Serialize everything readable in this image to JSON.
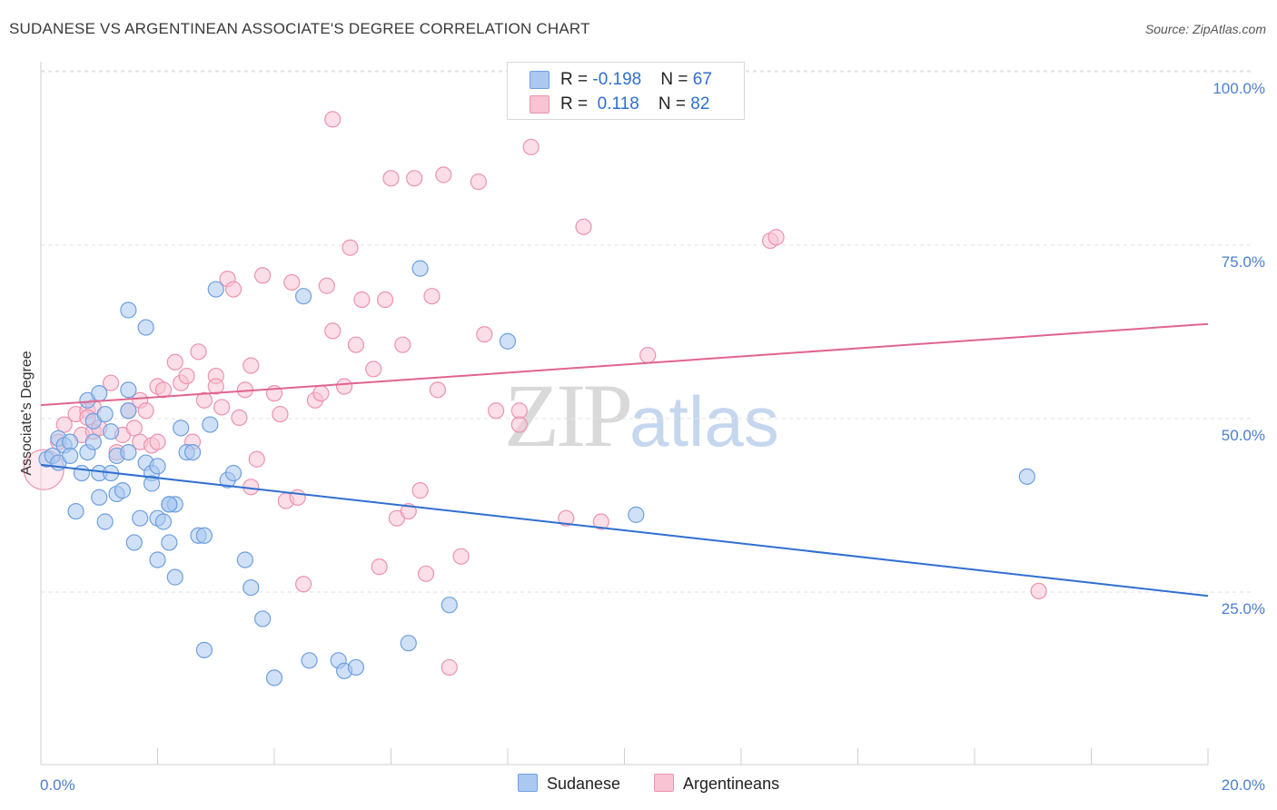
{
  "title": "SUDANESE VS ARGENTINEAN ASSOCIATE'S DEGREE CORRELATION CHART",
  "source": "Source: ZipAtlas.com",
  "watermark": {
    "zip": "ZIP",
    "atlas": "atlas"
  },
  "colors": {
    "sudanese_fill": "#aac8f0",
    "sudanese_stroke": "#6e9fdf",
    "sudanese_line": "#2f6fd0",
    "argentinean_fill": "#f8c3d3",
    "argentinean_stroke": "#ec93af",
    "argentinean_line": "#e0648e",
    "axis_text": "#4a7fd0",
    "grid": "#e2e2e2"
  },
  "legend": {
    "rows": [
      {
        "r_label": "R = ",
        "r_value": "-0.198",
        "n_label": "N = ",
        "n_value": "67"
      },
      {
        "r_label": "R = ",
        "r_value": " 0.118",
        "n_label": "N = ",
        "n_value": "82"
      }
    ]
  },
  "bottom_legend": {
    "series1": "Sudanese",
    "series2": "Argentineans"
  },
  "chart_data": {
    "type": "scatter",
    "title": "SUDANESE VS ARGENTINEAN ASSOCIATE'S DEGREE CORRELATION CHART",
    "xlabel": "",
    "ylabel": "Associate's Degree",
    "xlim": [
      0,
      20
    ],
    "ylim": [
      0,
      105
    ],
    "x_ticks": [
      {
        "v": 0,
        "label": "0.0%"
      },
      {
        "v": 20,
        "label": "20.0%"
      }
    ],
    "x_minor_ticks": [
      0,
      2,
      4,
      6,
      8,
      10,
      12,
      14,
      16,
      18,
      20
    ],
    "y_ticks": [
      {
        "v": 25,
        "label": "25.0%"
      },
      {
        "v": 50,
        "label": "50.0%"
      },
      {
        "v": 75,
        "label": "75.0%"
      },
      {
        "v": 100,
        "label": "100.0%"
      }
    ],
    "grid": true,
    "legend_position": "top-center",
    "series": [
      {
        "name": "Sudanese",
        "R": -0.198,
        "N": 67,
        "trend": {
          "x": [
            0,
            20
          ],
          "y": [
            45.7,
            26.8
          ]
        },
        "points": [
          [
            0.1,
            46.5
          ],
          [
            0.2,
            47
          ],
          [
            0.3,
            49.5
          ],
          [
            0.4,
            48.5
          ],
          [
            0.5,
            49
          ],
          [
            0.7,
            44.5
          ],
          [
            0.8,
            47.5
          ],
          [
            0.6,
            39
          ],
          [
            1.0,
            44.5
          ],
          [
            0.8,
            55
          ],
          [
            0.9,
            52
          ],
          [
            1.0,
            56
          ],
          [
            1.1,
            53
          ],
          [
            1.2,
            50.5
          ],
          [
            1.3,
            47
          ],
          [
            1.0,
            41
          ],
          [
            1.1,
            37.5
          ],
          [
            1.3,
            41.5
          ],
          [
            1.2,
            44.5
          ],
          [
            1.5,
            53.5
          ],
          [
            1.5,
            56.5
          ],
          [
            1.4,
            42
          ],
          [
            1.5,
            47.5
          ],
          [
            1.8,
            46
          ],
          [
            1.7,
            38
          ],
          [
            1.6,
            34.5
          ],
          [
            1.9,
            44.5
          ],
          [
            2.0,
            45.5
          ],
          [
            1.5,
            68
          ],
          [
            1.8,
            65.5
          ],
          [
            2.0,
            38
          ],
          [
            2.2,
            40
          ],
          [
            2.3,
            40
          ],
          [
            2.1,
            37.5
          ],
          [
            2.0,
            32
          ],
          [
            2.2,
            34.5
          ],
          [
            2.3,
            29.5
          ],
          [
            2.4,
            51
          ],
          [
            2.5,
            47.5
          ],
          [
            2.6,
            47.5
          ],
          [
            2.7,
            35.5
          ],
          [
            2.8,
            35.5
          ],
          [
            2.9,
            51.5
          ],
          [
            3.0,
            71
          ],
          [
            3.2,
            43.5
          ],
          [
            3.3,
            44.5
          ],
          [
            3.5,
            32
          ],
          [
            3.6,
            28
          ],
          [
            3.8,
            23.5
          ],
          [
            2.8,
            19
          ],
          [
            4.5,
            70
          ],
          [
            4.6,
            17.5
          ],
          [
            5.1,
            17.5
          ],
          [
            5.2,
            16
          ],
          [
            5.4,
            16.5
          ],
          [
            6.3,
            20
          ],
          [
            6.5,
            74
          ],
          [
            7.0,
            25.5
          ],
          [
            8.0,
            63.5
          ],
          [
            10.2,
            38.5
          ],
          [
            16.9,
            44
          ],
          [
            0.3,
            46
          ],
          [
            0.5,
            47
          ],
          [
            0.9,
            49
          ],
          [
            2.2,
            40
          ],
          [
            1.9,
            43
          ],
          [
            4.0,
            15
          ]
        ]
      },
      {
        "name": "Argentineans",
        "R": 0.118,
        "N": 82,
        "trend": {
          "x": [
            0,
            20
          ],
          "y": [
            54.3,
            66
          ]
        },
        "points": [
          [
            0.05,
            45
          ],
          [
            0.3,
            49
          ],
          [
            0.4,
            51.5
          ],
          [
            0.6,
            53
          ],
          [
            0.7,
            50
          ],
          [
            0.8,
            53.5
          ],
          [
            0.9,
            54
          ],
          [
            0.9,
            50.5
          ],
          [
            1.0,
            51
          ],
          [
            0.8,
            52.5
          ],
          [
            1.2,
            57.5
          ],
          [
            1.3,
            47.5
          ],
          [
            1.4,
            50
          ],
          [
            1.5,
            53.5
          ],
          [
            1.6,
            51
          ],
          [
            1.7,
            55
          ],
          [
            1.7,
            49
          ],
          [
            1.8,
            53.5
          ],
          [
            1.9,
            48.5
          ],
          [
            2.0,
            57
          ],
          [
            2.0,
            49
          ],
          [
            2.1,
            56.5
          ],
          [
            2.3,
            60.5
          ],
          [
            2.4,
            57.5
          ],
          [
            2.5,
            58.5
          ],
          [
            2.6,
            49
          ],
          [
            2.7,
            62
          ],
          [
            2.8,
            55
          ],
          [
            3.0,
            58.5
          ],
          [
            3.0,
            57
          ],
          [
            3.1,
            54
          ],
          [
            3.2,
            72.5
          ],
          [
            3.3,
            71
          ],
          [
            3.4,
            52.5
          ],
          [
            3.5,
            56.5
          ],
          [
            3.6,
            60
          ],
          [
            3.8,
            73
          ],
          [
            3.6,
            42.5
          ],
          [
            3.7,
            46.5
          ],
          [
            4.0,
            56
          ],
          [
            4.1,
            53
          ],
          [
            4.2,
            40.5
          ],
          [
            4.3,
            72
          ],
          [
            4.4,
            41
          ],
          [
            4.5,
            28.5
          ],
          [
            4.7,
            55
          ],
          [
            4.8,
            56
          ],
          [
            4.9,
            71.5
          ],
          [
            5.0,
            65
          ],
          [
            5.2,
            57
          ],
          [
            5.3,
            77
          ],
          [
            5.4,
            63
          ],
          [
            5.0,
            95.5
          ],
          [
            5.5,
            69.5
          ],
          [
            5.7,
            59.5
          ],
          [
            5.8,
            31
          ],
          [
            5.9,
            69.5
          ],
          [
            6.0,
            87
          ],
          [
            6.1,
            38
          ],
          [
            6.3,
            39
          ],
          [
            6.2,
            63
          ],
          [
            6.4,
            87
          ],
          [
            6.5,
            42
          ],
          [
            6.6,
            30
          ],
          [
            6.7,
            70
          ],
          [
            6.8,
            56.5
          ],
          [
            6.9,
            87.5
          ],
          [
            7.0,
            16.5
          ],
          [
            7.2,
            32.5
          ],
          [
            7.5,
            86.5
          ],
          [
            7.6,
            64.5
          ],
          [
            7.8,
            53.5
          ],
          [
            8.2,
            53.5
          ],
          [
            8.2,
            51.5
          ],
          [
            8.4,
            91.5
          ],
          [
            9.0,
            38
          ],
          [
            9.3,
            80
          ],
          [
            9.6,
            37.5
          ],
          [
            10.4,
            61.5
          ],
          [
            12.5,
            78
          ],
          [
            12.6,
            78.5
          ],
          [
            17.1,
            27.5
          ]
        ]
      }
    ]
  }
}
